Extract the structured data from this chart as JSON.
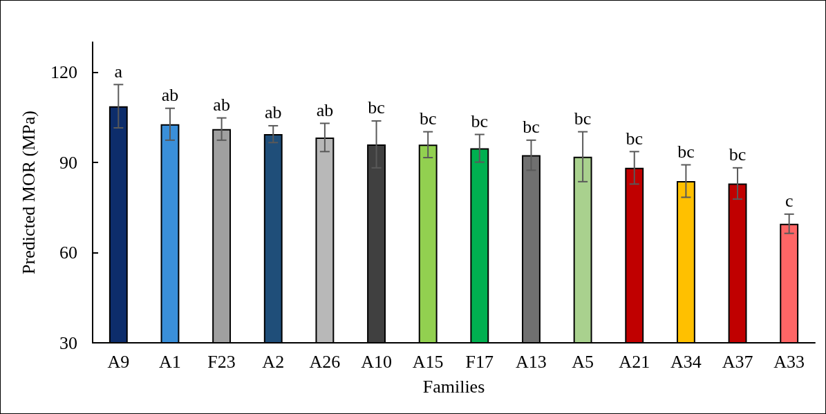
{
  "chart_data": {
    "type": "bar",
    "xlabel": "Families",
    "ylabel": "Predicted MOR (MPa)",
    "categories": [
      "A9",
      "A1",
      "F23",
      "A2",
      "A26",
      "A10",
      "A15",
      "F17",
      "A13",
      "A5",
      "A21",
      "A34",
      "A37",
      "A33"
    ],
    "values": [
      108.7,
      102.7,
      101.1,
      99.4,
      98.3,
      96.0,
      95.9,
      94.7,
      92.4,
      91.9,
      88.2,
      83.8,
      83.0,
      69.6
    ],
    "errors": [
      7.2,
      5.3,
      3.7,
      2.8,
      4.7,
      7.8,
      4.3,
      4.6,
      5.0,
      8.3,
      5.4,
      5.4,
      5.2,
      3.2
    ],
    "colors": [
      "#0d2d6b",
      "#3a8fd9",
      "#a0a0a0",
      "#1f4e79",
      "#b8b8b8",
      "#404040",
      "#92d050",
      "#00b050",
      "#707070",
      "#a9d18e",
      "#c00000",
      "#ffc000",
      "#c00000",
      "#ff6666"
    ],
    "ylim": [
      30,
      130
    ],
    "yticks": [
      30,
      60,
      90,
      120
    ],
    "annotations": [
      {
        "text": "a",
        "x": "A9",
        "y": 115.9
      },
      {
        "text": "ab",
        "x": "A1",
        "y": 108.0
      },
      {
        "text": "ab",
        "x": "F23",
        "y": 104.8
      },
      {
        "text": "ab",
        "x": "A2",
        "y": 102.2
      },
      {
        "text": "ab",
        "x": "A26",
        "y": 103.0
      },
      {
        "text": "bc",
        "x": "A10",
        "y": 103.8
      },
      {
        "text": "bc",
        "x": "A15",
        "y": 100.2
      },
      {
        "text": "bc",
        "x": "F17",
        "y": 99.3
      },
      {
        "text": "bc",
        "x": "A13",
        "y": 97.4
      },
      {
        "text": "bc",
        "x": "A5",
        "y": 100.2
      },
      {
        "text": "bc",
        "x": "A21",
        "y": 93.6
      },
      {
        "text": "bc",
        "x": "A34",
        "y": 89.2
      },
      {
        "text": "bc",
        "x": "A37",
        "y": 88.2
      },
      {
        "text": "c",
        "x": "A33",
        "y": 72.8
      }
    ]
  }
}
